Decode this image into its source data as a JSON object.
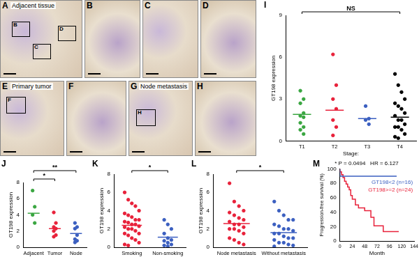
{
  "images": [
    {
      "panel": "A",
      "caption": "Adjacent tissue",
      "insets": [
        "B",
        "C",
        "D"
      ]
    },
    {
      "panel": "B"
    },
    {
      "panel": "C"
    },
    {
      "panel": "D"
    },
    {
      "panel": "E",
      "caption": "Primary tumor",
      "insets": [
        "F"
      ]
    },
    {
      "panel": "F"
    },
    {
      "panel": "G",
      "caption": "Node metastasis",
      "insets": [
        "H"
      ]
    },
    {
      "panel": "H"
    }
  ],
  "chart_data": [
    {
      "panel": "I",
      "type": "strip",
      "ylabel": "GT198 expression",
      "xlabel": "Stage:",
      "categories": [
        "T1",
        "T2",
        "T3",
        "T4"
      ],
      "colors": [
        "#3aa641",
        "#e8213a",
        "#3b5fc0",
        "#000000"
      ],
      "values": [
        [
          3.6,
          3.0,
          2.7,
          2.0,
          1.8,
          1.7,
          1.3,
          1.0,
          0.8,
          0.5
        ],
        [
          6.2,
          4.0,
          3.0,
          2.3,
          1.5,
          1.0,
          0.4
        ],
        [
          2.5,
          1.6,
          1.5,
          1.2
        ],
        [
          4.8,
          4.0,
          3.5,
          3.0,
          2.7,
          2.5,
          2.3,
          2.0,
          1.8,
          1.5,
          1.5,
          1.2,
          1.0,
          1.0,
          0.8,
          0.5,
          0.3,
          0.2
        ]
      ],
      "means": [
        1.9,
        2.2,
        1.6,
        1.7
      ],
      "ylim": [
        0,
        9
      ],
      "yticks": [
        0,
        3,
        6,
        9
      ],
      "significance": [
        {
          "from": "T1",
          "to": "T4",
          "label": "NS"
        }
      ]
    },
    {
      "panel": "J",
      "type": "strip",
      "ylabel": "GT198 expression",
      "categories": [
        "Adjacent",
        "Tumor",
        "Node"
      ],
      "colors": [
        "#3aa641",
        "#e8213a",
        "#3b5fc0"
      ],
      "values": [
        [
          7.0,
          5.0,
          4.0,
          3.0
        ],
        [
          4.3,
          3.0,
          2.5,
          2.3,
          2.0,
          1.5,
          1.3
        ],
        [
          3.0,
          2.5,
          2.3,
          1.5,
          1.0,
          0.8,
          0.6
        ]
      ],
      "means": [
        4.2,
        2.3,
        1.7
      ],
      "ylim": [
        0,
        8
      ],
      "yticks": [
        0,
        2,
        4,
        6,
        8
      ],
      "significance": [
        {
          "from": "Adjacent",
          "to": "Tumor",
          "label": "*"
        },
        {
          "from": "Adjacent",
          "to": "Node",
          "label": "**"
        }
      ]
    },
    {
      "panel": "K",
      "type": "strip",
      "ylabel": "GT198 expression",
      "categories": [
        "Smoking",
        "Non-smoking"
      ],
      "colors": [
        "#e8213a",
        "#3b5fc0"
      ],
      "values": [
        [
          6.0,
          5.2,
          4.8,
          4.5,
          4.0,
          3.7,
          3.5,
          3.3,
          3.0,
          3.0,
          2.8,
          2.7,
          2.5,
          2.5,
          2.3,
          2.2,
          2.0,
          2.0,
          1.8,
          1.5,
          1.5,
          1.3,
          1.0,
          0.8,
          0.5,
          0.3,
          0.2
        ],
        [
          3.0,
          2.5,
          2.0,
          1.5,
          1.0,
          0.8,
          0.7,
          0.5,
          0.3,
          0.2,
          0.1
        ]
      ],
      "means": [
        2.4,
        1.1
      ],
      "ylim": [
        0,
        8
      ],
      "yticks": [
        0,
        2,
        4,
        6,
        8
      ],
      "significance": [
        {
          "from": "Smoking",
          "to": "Non-smoking",
          "label": "*"
        }
      ]
    },
    {
      "panel": "L",
      "type": "strip",
      "ylabel": "GT198 expression",
      "categories": [
        "Node metastasis",
        "Without metastasis"
      ],
      "colors": [
        "#e8213a",
        "#3b5fc0"
      ],
      "values": [
        [
          7.0,
          5.0,
          4.5,
          4.0,
          3.8,
          3.5,
          3.2,
          3.0,
          2.8,
          2.5,
          2.5,
          2.2,
          2.0,
          2.0,
          1.8,
          1.5,
          1.0,
          0.8,
          0.5,
          0.3
        ],
        [
          5.0,
          4.0,
          3.5,
          3.0,
          3.0,
          2.5,
          2.3,
          2.0,
          2.0,
          1.8,
          1.5,
          1.5,
          1.2,
          1.0,
          1.0,
          0.8,
          0.5,
          0.5,
          0.3,
          0.2,
          0.1
        ]
      ],
      "means": [
        2.6,
        1.6
      ],
      "ylim": [
        0,
        8
      ],
      "yticks": [
        0,
        2,
        4,
        6,
        8
      ],
      "significance": [
        {
          "from": "Node metastasis",
          "to": "Without metastasis",
          "label": "*"
        }
      ]
    },
    {
      "panel": "M",
      "type": "survival",
      "title": "* P = 0.0494   HR = 6.127",
      "xlabel": "Month",
      "ylabel": "Progression-free survival (%)",
      "series": [
        {
          "name": "GT198<2 (n=16)",
          "color": "#3b5fc0",
          "x": [
            0,
            6,
            110
          ],
          "values": [
            100,
            90,
            90
          ]
        },
        {
          "name": "GT198>=2 (n=24)",
          "color": "#e8213a",
          "x": [
            0,
            3,
            6,
            9,
            12,
            15,
            18,
            21,
            24,
            30,
            36,
            48,
            60,
            66,
            84,
            96,
            114
          ],
          "values": [
            100,
            96,
            92,
            88,
            83,
            79,
            75,
            71,
            63,
            58,
            50,
            46,
            42,
            33,
            21,
            13,
            13
          ]
        }
      ],
      "xlim": [
        0,
        144
      ],
      "xticks": [
        0,
        24,
        48,
        72,
        96,
        120,
        144
      ],
      "ylim": [
        0,
        100
      ],
      "yticks": [
        0,
        20,
        40,
        60,
        80,
        100
      ]
    }
  ]
}
